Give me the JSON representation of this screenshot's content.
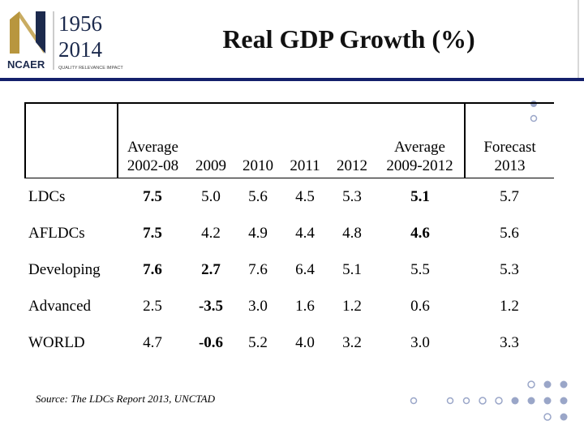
{
  "header": {
    "logo": {
      "year_top": "1956",
      "year_bottom": "2014",
      "org": "NCAER",
      "tagline": "QUALITY  RELEVANCE  IMPACT"
    },
    "title": "Real GDP Growth (%)"
  },
  "table": {
    "headers": {
      "avg_0208_line1": "Average",
      "avg_0208_line2": "2002-08",
      "y2009": "2009",
      "y2010": "2010",
      "y2011": "2011",
      "y2012": "2012",
      "avg_0912_line1": "Average",
      "avg_0912_line2": "2009-2012",
      "forecast_line1": "Forecast",
      "forecast_line2": "2013"
    },
    "rows": [
      {
        "label": "LDCs",
        "c1": "7.5",
        "c2": "5.0",
        "c3": "5.6",
        "c4": "4.5",
        "c5": "5.3",
        "c6": "5.1",
        "c7": "5.7"
      },
      {
        "label": "AFLDCs",
        "c1": "7.5",
        "c2": "4.2",
        "c3": "4.9",
        "c4": "4.4",
        "c5": "4.8",
        "c6": "4.6",
        "c7": "5.6"
      },
      {
        "label": "Developing",
        "c1": "7.6",
        "c2": "2.7",
        "c3": "7.6",
        "c4": "6.4",
        "c5": "5.1",
        "c6": "5.5",
        "c7": "5.3"
      },
      {
        "label": "Advanced",
        "c1": "2.5",
        "c2": "-3.5",
        "c3": "3.0",
        "c4": "1.6",
        "c5": "1.2",
        "c6": "0.6",
        "c7": "1.2"
      },
      {
        "label": "WORLD",
        "c1": "4.7",
        "c2": "-0.6",
        "c3": "5.2",
        "c4": "4.0",
        "c5": "3.2",
        "c6": "3.0",
        "c7": "3.3"
      }
    ]
  },
  "source": "Source: The LDCs Report 2013, UNCTAD",
  "colors": {
    "brand_blue": "#1f2f8a",
    "logo_gold": "#b8963e",
    "logo_navy": "#1c2a4d",
    "logo_red": "#c0392b"
  }
}
